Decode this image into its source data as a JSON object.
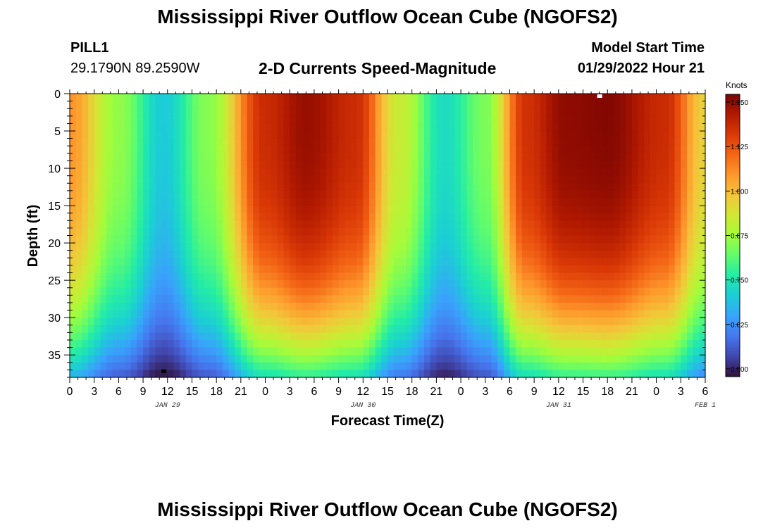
{
  "title": "Mississippi River Outflow Ocean Cube (NGOFS2)",
  "title_repeat": "Mississippi River Outflow Ocean Cube (NGOFS2)",
  "station": {
    "id": "PILL1",
    "coords": "29.1790N  89.2590W"
  },
  "subtitle": "2-D Currents Speed-Magnitude",
  "model_start": {
    "label": "Model Start Time",
    "value": "01/29/2022 Hour 21"
  },
  "chart_data": {
    "type": "heatmap",
    "xlabel": "Forecast Time(Z)",
    "ylabel": "Depth (ft)",
    "x_tick_labels": [
      "0",
      "3",
      "6",
      "9",
      "12",
      "15",
      "18",
      "21",
      "0",
      "3",
      "6",
      "9",
      "12",
      "15",
      "18",
      "21",
      "0",
      "3",
      "6",
      "9",
      "12",
      "15",
      "18",
      "21",
      "0",
      "3",
      "6"
    ],
    "date_labels": [
      {
        "text": "JAN 29",
        "hour": 12
      },
      {
        "text": "JAN 30",
        "hour": 36
      },
      {
        "text": "JAN 31",
        "hour": 60
      },
      {
        "text": "FEB 1",
        "hour": 78
      }
    ],
    "x_range_hours": [
      0,
      78
    ],
    "y_ticks": [
      0,
      5,
      10,
      15,
      20,
      25,
      30,
      35
    ],
    "y_range_ft": [
      0,
      38
    ],
    "colorbar": {
      "unit": "Knots",
      "range": [
        0.48,
        1.27
      ],
      "tick_values": [
        0.5,
        0.625,
        0.75,
        0.875,
        1.0,
        1.125,
        1.25
      ],
      "tick_labels": [
        "0.500",
        "0.625",
        "0.750",
        "0.875",
        "1.000",
        "1.125",
        "1.250"
      ]
    },
    "surface_speed_profile_knots": {
      "hours": [
        0,
        6,
        11.5,
        17,
        24,
        29,
        35,
        40.5,
        46,
        51,
        56,
        61,
        66,
        73,
        78
      ],
      "values": [
        1.05,
        0.86,
        0.7,
        0.85,
        1.18,
        1.24,
        1.18,
        0.92,
        0.73,
        0.84,
        1.17,
        1.25,
        1.26,
        1.18,
        0.97
      ]
    },
    "bottom_speed_knots": {
      "min": 0.48,
      "max": 0.78
    },
    "markers": [
      {
        "hour": 11.5,
        "depth_ft": 37.5,
        "type": "min"
      },
      {
        "hour": 65,
        "depth_ft": 0,
        "type": "max"
      }
    ]
  }
}
